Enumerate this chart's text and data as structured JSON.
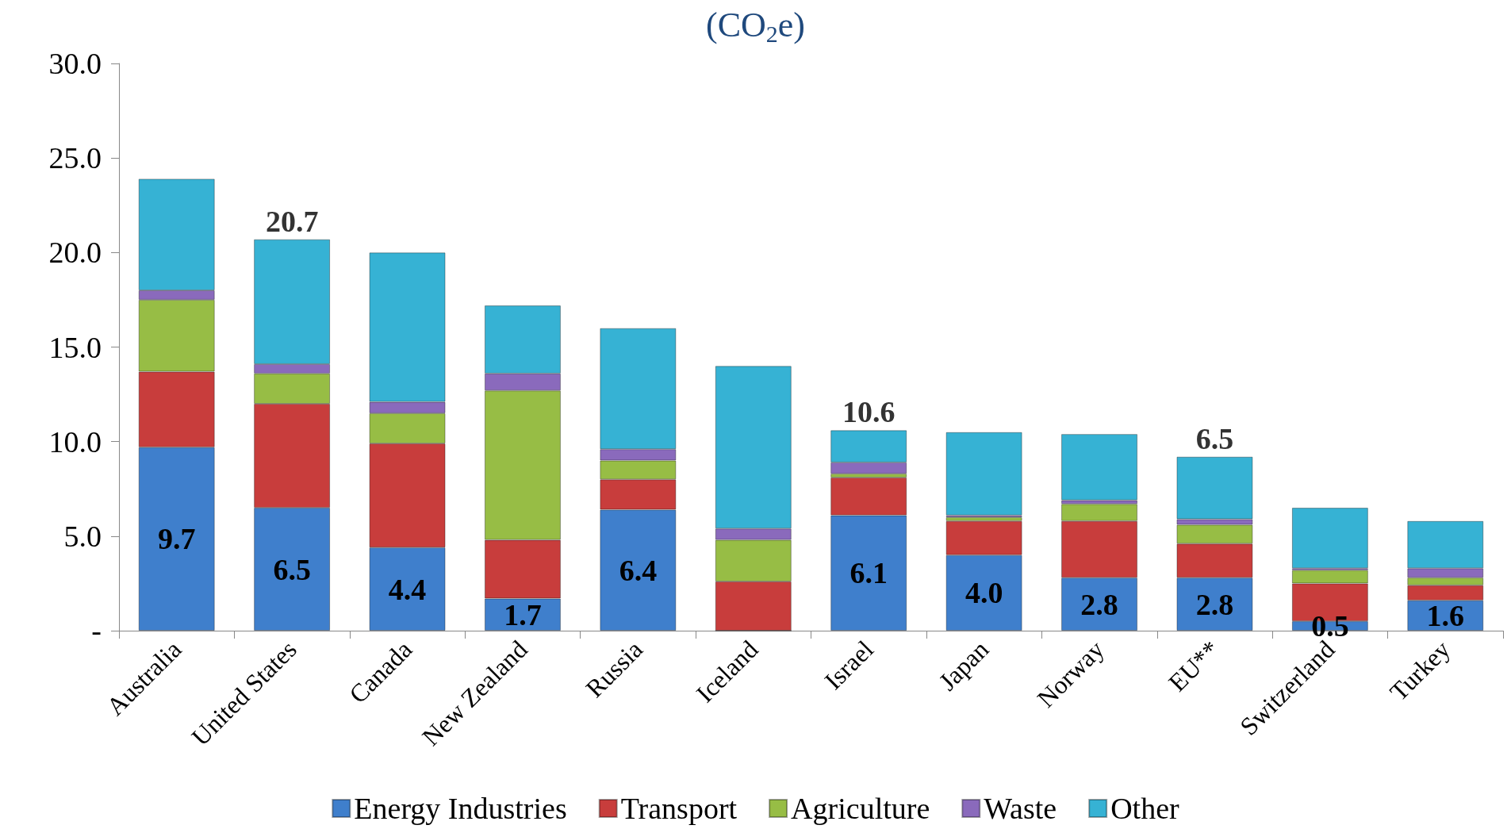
{
  "chart_data": {
    "type": "bar",
    "title": "(CO$_{2}$e)",
    "stacked": true,
    "legend": "bottom",
    "grid": false,
    "categories": [
      "Australia",
      "United States",
      "Canada",
      "New Zealand",
      "Russia",
      "Iceland",
      "Israel",
      "Japan",
      "Norway",
      "EU**",
      "Switzerland",
      "Turkey"
    ],
    "ylim": [
      0,
      30
    ],
    "yticks": [
      {
        "value": 0,
        "label": "-"
      },
      {
        "value": 5,
        "label": "5.0"
      },
      {
        "value": 10,
        "label": "10.0"
      },
      {
        "value": 15,
        "label": "15.0"
      },
      {
        "value": 20,
        "label": "20.0"
      },
      {
        "value": 25,
        "label": "25.0"
      },
      {
        "value": 30,
        "label": "30.0"
      }
    ],
    "totals": [
      null,
      "20.7",
      null,
      null,
      null,
      null,
      "10.6",
      null,
      null,
      null,
      null,
      null
    ],
    "annotations": [
      {
        "text": "6.5",
        "x": "EU**",
        "y": 9.2
      }
    ],
    "series": [
      {
        "name": "Energy Industries",
        "color": "#3f7fcc",
        "values": [
          9.7,
          6.5,
          4.4,
          1.7,
          6.4,
          0,
          6.1,
          4.0,
          2.8,
          2.8,
          0.5,
          1.6
        ],
        "value_labels": [
          "9.7",
          "6.5",
          "4.4",
          "1.7",
          "6.4",
          null,
          "6.1",
          "4.0",
          "2.8",
          "2.8",
          "0.5",
          "1.6"
        ]
      },
      {
        "name": "Transport",
        "color": "#c83d3c",
        "values": [
          4.0,
          5.5,
          5.5,
          3.1,
          1.6,
          2.6,
          2.0,
          1.8,
          3.0,
          1.8,
          2.0,
          0.8
        ]
      },
      {
        "name": "Agriculture",
        "color": "#97bd45",
        "values": [
          3.8,
          1.6,
          1.6,
          7.9,
          1.0,
          2.2,
          0.2,
          0.2,
          0.9,
          1.0,
          0.7,
          0.4
        ]
      },
      {
        "name": "Waste",
        "color": "#8a6abc",
        "values": [
          0.5,
          0.5,
          0.6,
          0.9,
          0.6,
          0.6,
          0.6,
          0.1,
          0.2,
          0.3,
          0.1,
          0.5
        ]
      },
      {
        "name": "Other",
        "color": "#36b2d4",
        "values": [
          5.9,
          6.6,
          7.9,
          3.6,
          6.4,
          8.6,
          1.7,
          4.4,
          3.5,
          3.3,
          3.2,
          2.5
        ]
      }
    ]
  }
}
